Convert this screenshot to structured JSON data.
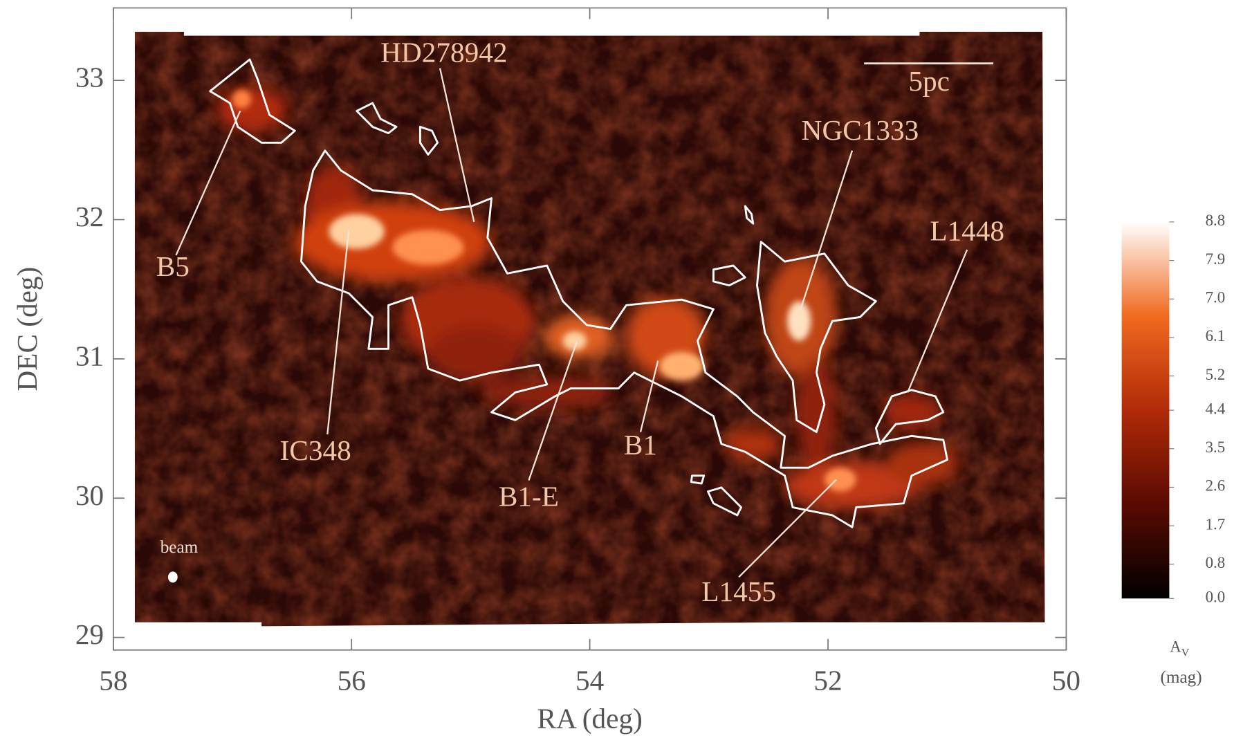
{
  "chart_data": {
    "type": "heatmap",
    "xlabel": "RA (deg)",
    "ylabel": "DEC (deg)",
    "xlim": [
      58,
      50
    ],
    "ylim": [
      28.91,
      33.52
    ],
    "xticks": [
      58,
      56,
      54,
      52,
      50
    ],
    "yticks": [
      29,
      30,
      31,
      32,
      33
    ],
    "colorbar": {
      "label": "A",
      "label_subscript": "V",
      "unit": "(mag)",
      "lim": [
        0,
        8.8
      ],
      "colormap": [
        "#000000",
        "#5a0a02",
        "#b02a08",
        "#f06a20",
        "#ffffff"
      ],
      "ticks": [
        {
          "value": 0,
          "label": "0.0"
        },
        0.8,
        1.7,
        2.6,
        3.5,
        4.4,
        5.2,
        6.1,
        {
          "value": 7,
          "label": "7.0"
        },
        7.9,
        8.8
      ]
    },
    "annotations": [
      "HD278942",
      "B5",
      "IC348",
      "B1-E",
      "B1",
      "NGC1333",
      "L1448",
      "L1455"
    ],
    "scale_bar": "5pc",
    "beam": "beam"
  }
}
